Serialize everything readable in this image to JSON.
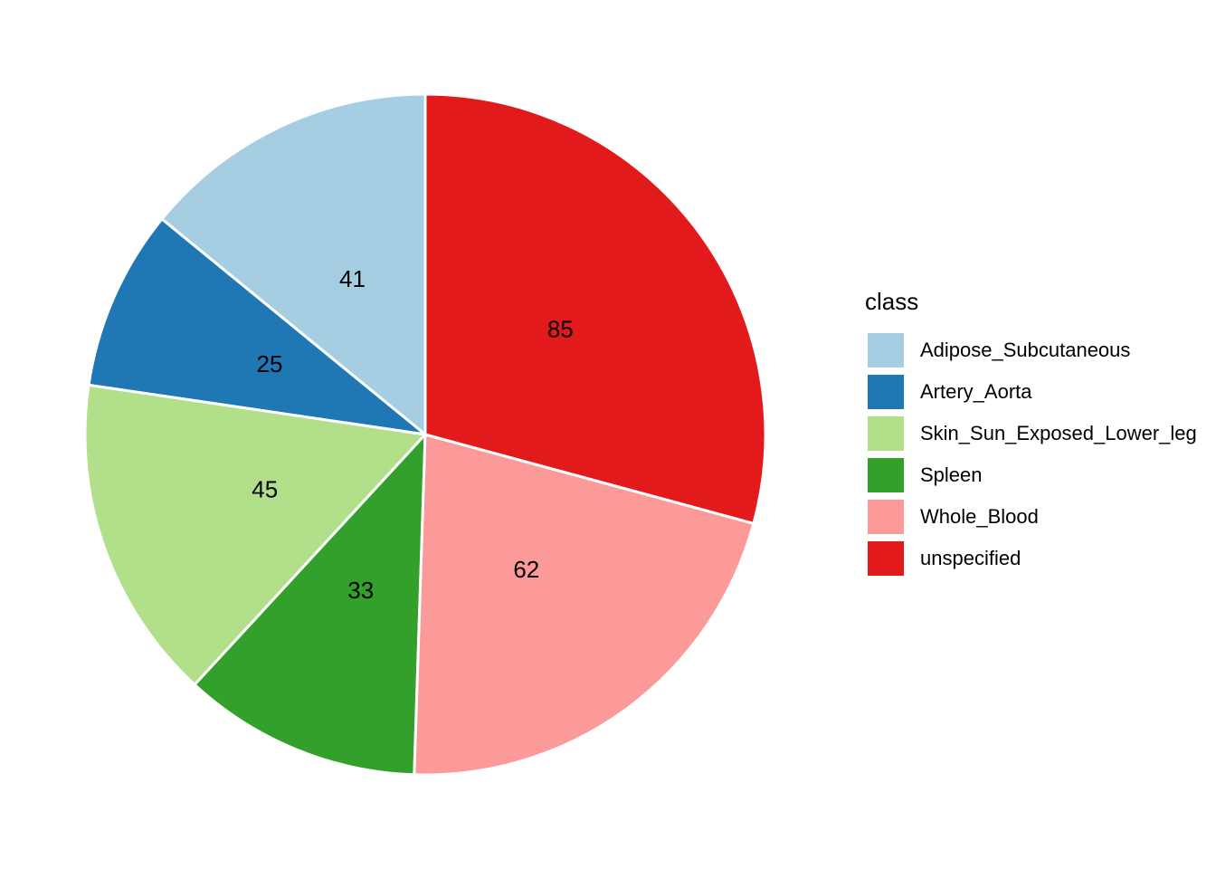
{
  "chart_data": {
    "type": "pie",
    "legend_title": "class",
    "categories": [
      "Adipose_Subcutaneous",
      "Artery_Aorta",
      "Skin_Sun_Exposed_Lower_leg",
      "Spleen",
      "Whole_Blood",
      "unspecified"
    ],
    "values": [
      41,
      25,
      45,
      33,
      62,
      85
    ],
    "colors": [
      "#a6cee3",
      "#1f78b4",
      "#b2df8a",
      "#33a02c",
      "#fb9a99",
      "#e31a1c"
    ],
    "legend_position": "right"
  }
}
